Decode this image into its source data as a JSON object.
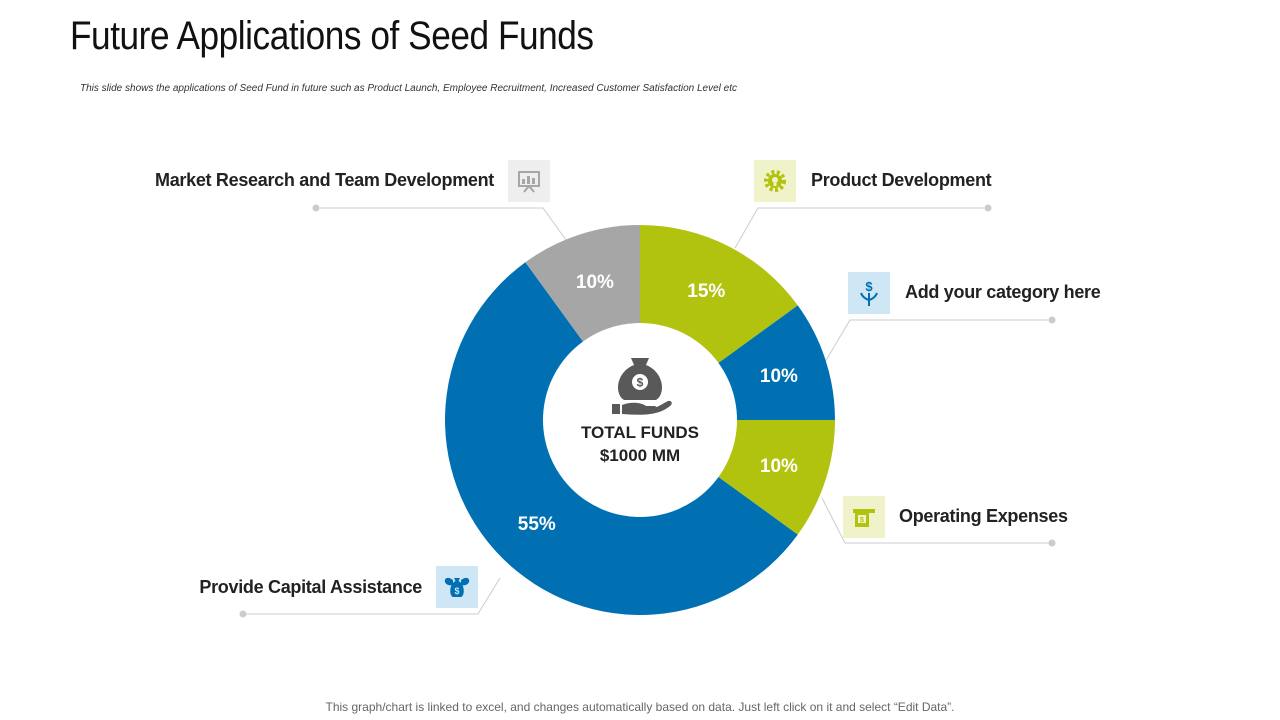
{
  "slide": {
    "title": "Future Applications of Seed Funds",
    "subtitle": "This slide shows the applications of Seed Fund in future such as Product Launch, Employee Recruitment, Increased Customer Satisfaction Level etc",
    "footer_note": "This graph/chart is linked to excel, and changes automatically based on data. Just left click on it and select “Edit Data”."
  },
  "center": {
    "line1": "TOTAL FUNDS",
    "line2": "$1000 MM",
    "icon": "money-bag-hand-icon"
  },
  "labels": {
    "market_research": "Market Research and Team Development",
    "product_development": "Product Development",
    "add_category": "Add your category here",
    "operating_expenses": "Operating Expenses",
    "capital_assistance": "Provide Capital Assistance"
  },
  "icons": {
    "market_research": "presentation-board-icon",
    "product_development": "gear-bulb-icon",
    "add_category": "plant-dollar-icon",
    "operating_expenses": "bill-icon",
    "capital_assistance": "winged-money-bag-icon"
  },
  "colors": {
    "blue": "#0070b3",
    "green": "#b2c30f",
    "gray": "#a6a6a6"
  },
  "chart_data": {
    "type": "pie",
    "variant": "donut",
    "categories": [
      "Product Development",
      "Add your category here",
      "Operating Expenses",
      "Provide Capital Assistance",
      "Market Research and Team Development"
    ],
    "values": [
      15,
      10,
      10,
      55,
      10
    ],
    "value_labels": [
      "15%",
      "10%",
      "10%",
      "55%",
      "10%"
    ],
    "colors": [
      "#b2c30f",
      "#0070b3",
      "#b2c30f",
      "#0070b3",
      "#a6a6a6"
    ],
    "units": "%"
  }
}
